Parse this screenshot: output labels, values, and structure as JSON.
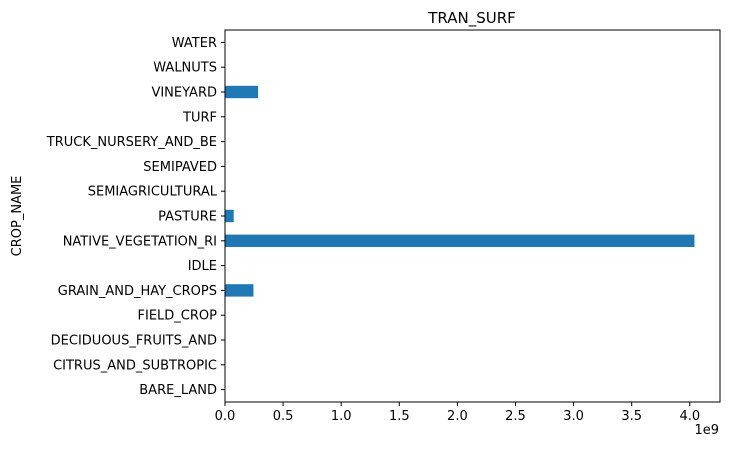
{
  "chart_data": {
    "type": "bar",
    "orientation": "horizontal",
    "title": "TRAN_SURF",
    "ylabel": "CROP_NAME",
    "xlabel": "",
    "x_offset_label": "1e9",
    "categories": [
      "BARE_LAND",
      "CITRUS_AND_SUBTROPIC",
      "DECIDUOUS_FRUITS_AND",
      "FIELD_CROP",
      "GRAIN_AND_HAY_CROPS",
      "IDLE",
      "NATIVE_VEGETATION_RI",
      "PASTURE",
      "SEMIAGRICULTURAL",
      "SEMIPAVED",
      "TRUCK_NURSERY_AND_BE",
      "TURF",
      "VINEYARD",
      "WALNUTS",
      "WATER"
    ],
    "values": [
      0,
      0,
      0,
      0,
      245000000,
      0,
      4040000000,
      75000000,
      0,
      0,
      0,
      0,
      285000000,
      0,
      0
    ],
    "xlim": [
      0,
      4260000000
    ],
    "xticks": [
      0,
      500000000,
      1000000000,
      1500000000,
      2000000000,
      2500000000,
      3000000000,
      3500000000,
      4000000000
    ],
    "xtick_labels": [
      "0.0",
      "0.5",
      "1.0",
      "1.5",
      "2.0",
      "2.5",
      "3.0",
      "3.5",
      "4.0"
    ],
    "bar_color": "#1f77b4",
    "grid": false,
    "legend": "none"
  }
}
